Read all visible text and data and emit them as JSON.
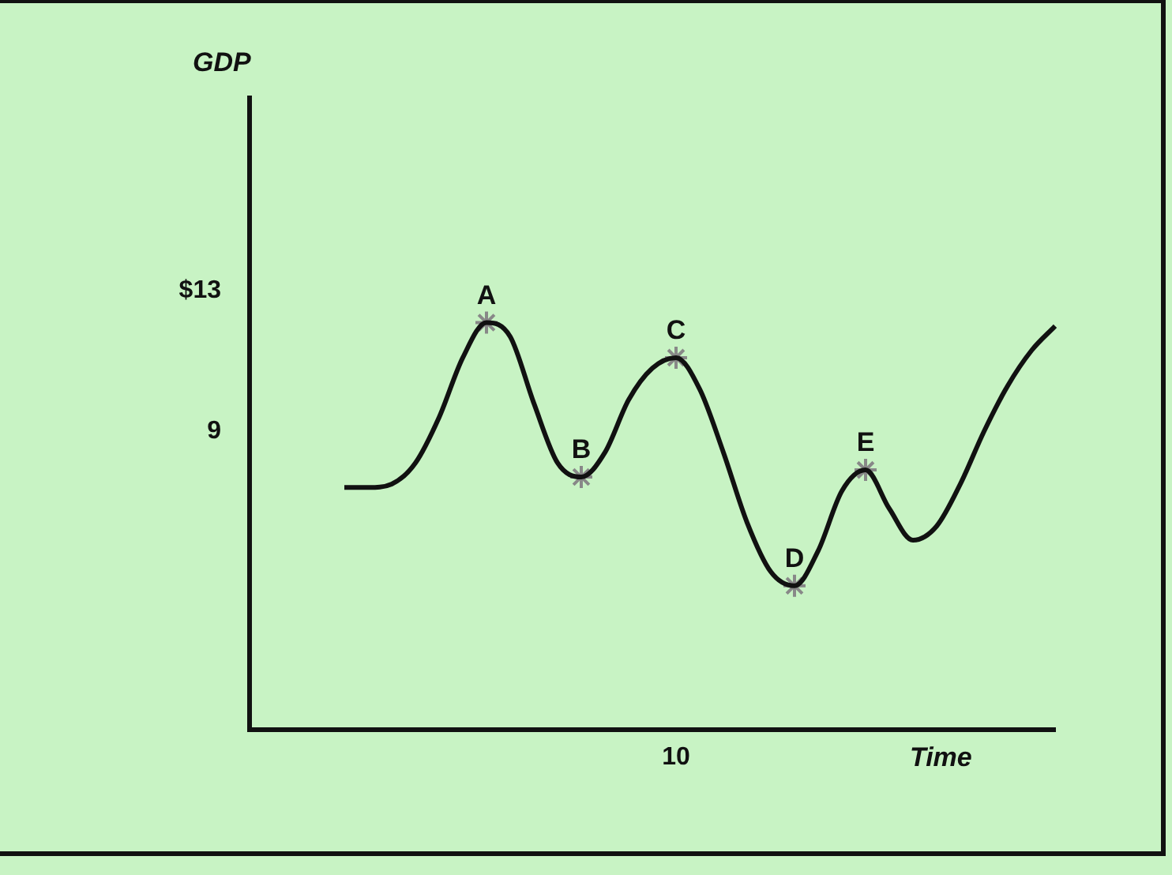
{
  "chart_data": {
    "type": "line",
    "xlabel": "Time",
    "ylabel": "GDP",
    "categories": [
      null,
      null,
      null,
      null,
      null,
      null,
      null,
      null,
      null,
      null,
      null,
      null,
      null,
      null,
      null,
      null,
      null,
      null,
      "10",
      null,
      null,
      null,
      null,
      null,
      null,
      null,
      null,
      null,
      null,
      null,
      null,
      null,
      null,
      null,
      null
    ],
    "ylim": [
      0.5,
      18.5
    ],
    "yticks": [
      {
        "value": 13,
        "label": "$13"
      },
      9
    ],
    "grid": false,
    "legend": false,
    "series": [
      {
        "type": "line",
        "color": "#111111",
        "marker": "none",
        "values": [
          null,
          null,
          null,
          null,
          7.4,
          7.4,
          7.5,
          8.1,
          9.4,
          11.1,
          12.1,
          11.7,
          9.8,
          8.1,
          7.7,
          8.4,
          9.9,
          10.8,
          11.1,
          10.2,
          8.4,
          6.4,
          5.0,
          4.6,
          5.6,
          7.3,
          7.9,
          6.8,
          5.9,
          6.3,
          7.5,
          9.0,
          10.3,
          11.3,
          12.0
        ]
      },
      {
        "type": "scatter",
        "color": "#888888",
        "marker": "cross",
        "values": [
          null,
          null,
          null,
          null,
          null,
          null,
          null,
          null,
          null,
          null,
          12.1,
          null,
          null,
          null,
          7.7,
          null,
          null,
          null,
          11.1,
          null,
          null,
          null,
          null,
          4.6,
          null,
          null,
          7.9,
          null,
          null,
          null,
          null,
          null,
          null,
          null,
          null
        ],
        "value_labels": [
          null,
          null,
          null,
          null,
          null,
          null,
          null,
          null,
          null,
          null,
          "A",
          null,
          null,
          null,
          "B",
          null,
          null,
          null,
          "C",
          null,
          null,
          null,
          null,
          "D",
          null,
          null,
          "E",
          null,
          null,
          null,
          null,
          null,
          null,
          null,
          null
        ]
      }
    ]
  }
}
